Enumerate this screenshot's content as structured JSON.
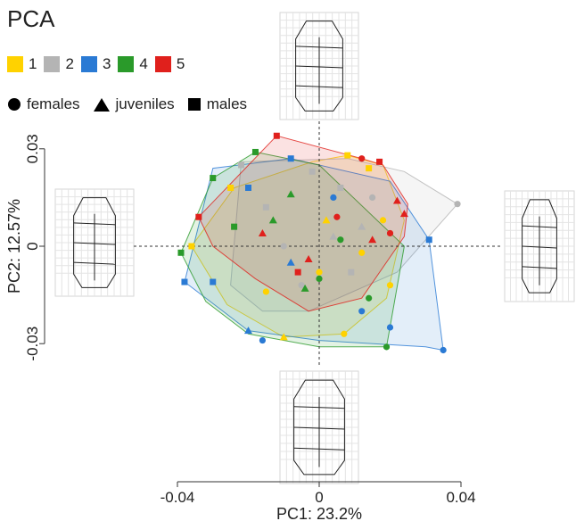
{
  "title": "PCA",
  "groups": [
    {
      "label": "1",
      "color": "#ffd200"
    },
    {
      "label": "2",
      "color": "#b4b4b4"
    },
    {
      "label": "3",
      "color": "#2a7ad4"
    },
    {
      "label": "4",
      "color": "#2a9a2a"
    },
    {
      "label": "5",
      "color": "#e0201c"
    }
  ],
  "symbols": [
    {
      "label": "females",
      "shape": "circle"
    },
    {
      "label": "juveniles",
      "shape": "triangle"
    },
    {
      "label": "males",
      "shape": "square"
    }
  ],
  "chart_data": {
    "type": "scatter",
    "title": "PCA",
    "xlabel": "PC1: 23.2%",
    "ylabel": "PC2: 12.57%",
    "xlim": [
      -0.044,
      0.045
    ],
    "ylim": [
      -0.034,
      0.034
    ],
    "x_ticks": [
      {
        "value": -0.04,
        "label": "-0.04"
      },
      {
        "value": 0,
        "label": "0"
      },
      {
        "value": 0.04,
        "label": "0.04"
      }
    ],
    "y_ticks": [
      {
        "value": 0.03,
        "label": "0.03"
      },
      {
        "value": 0,
        "label": "0"
      },
      {
        "value": -0.03,
        "label": "-0.03"
      }
    ],
    "hulls": [
      {
        "group": "1",
        "points": [
          [
            -0.036,
            0.0
          ],
          [
            -0.024,
            0.018
          ],
          [
            -0.002,
            0.026
          ],
          [
            0.008,
            0.028
          ],
          [
            0.018,
            0.025
          ],
          [
            0.024,
            0.008
          ],
          [
            0.019,
            -0.016
          ],
          [
            0.007,
            -0.027
          ],
          [
            -0.01,
            -0.028
          ],
          [
            -0.026,
            -0.018
          ]
        ]
      },
      {
        "group": "2",
        "points": [
          [
            -0.022,
            0.026
          ],
          [
            0.008,
            0.027
          ],
          [
            0.024,
            0.023
          ],
          [
            0.039,
            0.013
          ],
          [
            0.022,
            -0.008
          ],
          [
            -0.003,
            -0.02
          ],
          [
            -0.016,
            -0.02
          ],
          [
            -0.025,
            -0.012
          ]
        ]
      },
      {
        "group": "3",
        "points": [
          [
            -0.038,
            -0.011
          ],
          [
            -0.02,
            -0.026
          ],
          [
            0.0,
            -0.029
          ],
          [
            0.03,
            -0.031
          ],
          [
            0.035,
            -0.032
          ],
          [
            0.031,
            0.002
          ],
          [
            0.02,
            0.02
          ],
          [
            -0.008,
            0.027
          ],
          [
            -0.03,
            0.024
          ]
        ]
      },
      {
        "group": "4",
        "points": [
          [
            -0.039,
            -0.002
          ],
          [
            -0.03,
            0.021
          ],
          [
            -0.018,
            0.029
          ],
          [
            0.0,
            0.025
          ],
          [
            0.024,
            0.0
          ],
          [
            0.019,
            -0.031
          ],
          [
            0.0,
            -0.031
          ],
          [
            -0.02,
            -0.027
          ],
          [
            -0.032,
            -0.017
          ]
        ]
      },
      {
        "group": "5",
        "points": [
          [
            -0.034,
            0.009
          ],
          [
            -0.012,
            0.034
          ],
          [
            0.012,
            0.027
          ],
          [
            0.018,
            0.025
          ],
          [
            0.025,
            0.013
          ],
          [
            0.024,
            0.003
          ],
          [
            0.012,
            -0.016
          ],
          [
            -0.003,
            -0.02
          ],
          [
            -0.018,
            -0.01
          ],
          [
            -0.03,
            0.0
          ]
        ]
      }
    ],
    "points": [
      {
        "group": "1",
        "shape": "square",
        "x": -0.036,
        "y": 0.0
      },
      {
        "group": "1",
        "shape": "square",
        "x": 0.008,
        "y": 0.028
      },
      {
        "group": "1",
        "shape": "square",
        "x": 0.014,
        "y": 0.024
      },
      {
        "group": "1",
        "shape": "circle",
        "x": 0.018,
        "y": 0.008
      },
      {
        "group": "1",
        "shape": "circle",
        "x": 0.012,
        "y": -0.002
      },
      {
        "group": "1",
        "shape": "circle",
        "x": 0.007,
        "y": -0.027
      },
      {
        "group": "1",
        "shape": "circle",
        "x": -0.015,
        "y": -0.014
      },
      {
        "group": "1",
        "shape": "triangle",
        "x": -0.01,
        "y": -0.028
      },
      {
        "group": "1",
        "shape": "triangle",
        "x": 0.002,
        "y": 0.008
      },
      {
        "group": "1",
        "shape": "circle",
        "x": 0.02,
        "y": -0.012
      },
      {
        "group": "1",
        "shape": "square",
        "x": -0.025,
        "y": 0.018
      },
      {
        "group": "1",
        "shape": "circle",
        "x": 0.0,
        "y": -0.008
      },
      {
        "group": "2",
        "shape": "circle",
        "x": 0.039,
        "y": 0.013
      },
      {
        "group": "2",
        "shape": "square",
        "x": -0.022,
        "y": 0.025
      },
      {
        "group": "2",
        "shape": "square",
        "x": -0.002,
        "y": 0.023
      },
      {
        "group": "2",
        "shape": "square",
        "x": 0.006,
        "y": 0.018
      },
      {
        "group": "2",
        "shape": "circle",
        "x": -0.01,
        "y": 0.0
      },
      {
        "group": "2",
        "shape": "triangle",
        "x": 0.004,
        "y": 0.003
      },
      {
        "group": "2",
        "shape": "square",
        "x": 0.009,
        "y": -0.008
      },
      {
        "group": "2",
        "shape": "circle",
        "x": -0.005,
        "y": -0.012
      },
      {
        "group": "2",
        "shape": "triangle",
        "x": 0.012,
        "y": 0.006
      },
      {
        "group": "2",
        "shape": "circle",
        "x": 0.015,
        "y": 0.015
      },
      {
        "group": "2",
        "shape": "square",
        "x": -0.015,
        "y": 0.012
      },
      {
        "group": "3",
        "shape": "square",
        "x": -0.038,
        "y": -0.011
      },
      {
        "group": "3",
        "shape": "circle",
        "x": 0.035,
        "y": -0.032
      },
      {
        "group": "3",
        "shape": "square",
        "x": 0.031,
        "y": 0.002
      },
      {
        "group": "3",
        "shape": "circle",
        "x": 0.012,
        "y": -0.02
      },
      {
        "group": "3",
        "shape": "triangle",
        "x": -0.02,
        "y": -0.026
      },
      {
        "group": "3",
        "shape": "circle",
        "x": -0.016,
        "y": -0.029
      },
      {
        "group": "3",
        "shape": "square",
        "x": -0.02,
        "y": 0.018
      },
      {
        "group": "3",
        "shape": "square",
        "x": -0.008,
        "y": 0.027
      },
      {
        "group": "3",
        "shape": "circle",
        "x": 0.004,
        "y": 0.015
      },
      {
        "group": "3",
        "shape": "square",
        "x": -0.03,
        "y": -0.011
      },
      {
        "group": "3",
        "shape": "circle",
        "x": 0.02,
        "y": -0.025
      },
      {
        "group": "3",
        "shape": "triangle",
        "x": -0.008,
        "y": -0.005
      },
      {
        "group": "4",
        "shape": "square",
        "x": -0.039,
        "y": -0.002
      },
      {
        "group": "4",
        "shape": "circle",
        "x": 0.019,
        "y": -0.031
      },
      {
        "group": "4",
        "shape": "square",
        "x": -0.03,
        "y": 0.021
      },
      {
        "group": "4",
        "shape": "square",
        "x": -0.018,
        "y": 0.029
      },
      {
        "group": "4",
        "shape": "triangle",
        "x": -0.008,
        "y": 0.016
      },
      {
        "group": "4",
        "shape": "circle",
        "x": 0.0,
        "y": -0.01
      },
      {
        "group": "4",
        "shape": "triangle",
        "x": -0.004,
        "y": -0.013
      },
      {
        "group": "4",
        "shape": "circle",
        "x": 0.014,
        "y": -0.016
      },
      {
        "group": "4",
        "shape": "triangle",
        "x": -0.013,
        "y": 0.008
      },
      {
        "group": "4",
        "shape": "circle",
        "x": 0.006,
        "y": 0.002
      },
      {
        "group": "4",
        "shape": "square",
        "x": -0.024,
        "y": 0.006
      },
      {
        "group": "5",
        "shape": "square",
        "x": -0.012,
        "y": 0.034
      },
      {
        "group": "5",
        "shape": "square",
        "x": -0.034,
        "y": 0.009
      },
      {
        "group": "5",
        "shape": "circle",
        "x": 0.012,
        "y": 0.027
      },
      {
        "group": "5",
        "shape": "triangle",
        "x": 0.024,
        "y": 0.01
      },
      {
        "group": "5",
        "shape": "triangle",
        "x": 0.015,
        "y": 0.002
      },
      {
        "group": "5",
        "shape": "circle",
        "x": 0.02,
        "y": 0.004
      },
      {
        "group": "5",
        "shape": "triangle",
        "x": -0.003,
        "y": -0.004
      },
      {
        "group": "5",
        "shape": "square",
        "x": 0.017,
        "y": 0.026
      },
      {
        "group": "5",
        "shape": "triangle",
        "x": 0.022,
        "y": 0.014
      },
      {
        "group": "5",
        "shape": "circle",
        "x": 0.005,
        "y": 0.009
      },
      {
        "group": "5",
        "shape": "square",
        "x": -0.006,
        "y": -0.008
      },
      {
        "group": "5",
        "shape": "triangle",
        "x": -0.016,
        "y": 0.004
      }
    ]
  }
}
